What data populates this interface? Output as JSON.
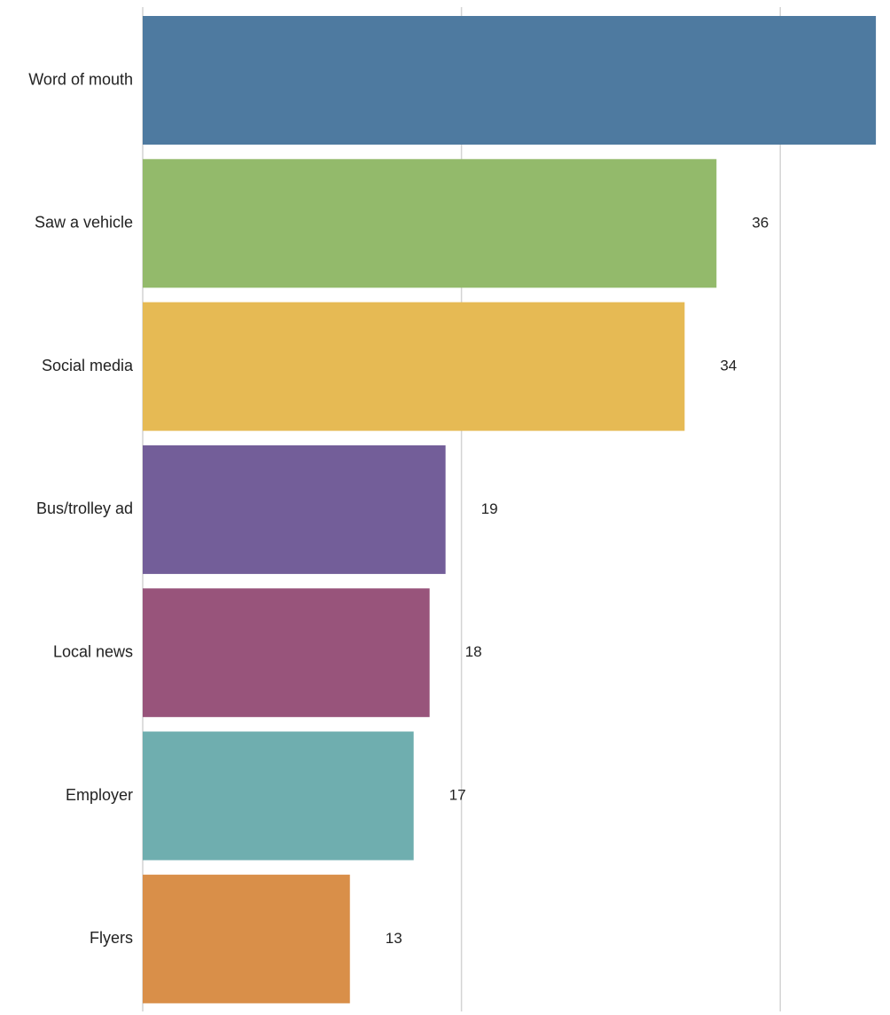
{
  "chart_data": {
    "type": "bar",
    "orientation": "horizontal",
    "categories": [
      "Word of mouth",
      "Saw a vehicle",
      "Social media",
      "Bus/trolley ad",
      "Local news",
      "Employer",
      "Flyers"
    ],
    "values": [
      46,
      36,
      34,
      19,
      18,
      17,
      13
    ],
    "data_labels": [
      "",
      "36",
      "34",
      "19",
      "18",
      "17",
      "13"
    ],
    "colors": [
      "#4e7aa0",
      "#93ba6b",
      "#e6ba54",
      "#735e99",
      "#98547b",
      "#6faeaf",
      "#d98f49"
    ],
    "xlim": [
      0,
      46
    ],
    "gridlines_x": [
      0,
      20,
      40
    ],
    "grid": true,
    "title": "",
    "xlabel": "",
    "ylabel": ""
  }
}
